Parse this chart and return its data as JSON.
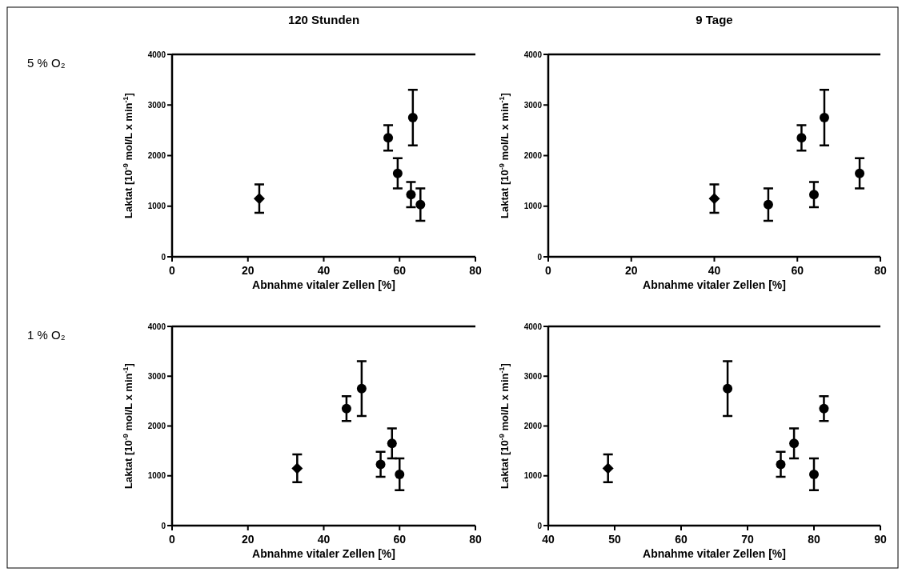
{
  "chart_data": [
    {
      "type": "scatter",
      "title": "120 Stunden",
      "xlabel": "Abnahme vitaler Zellen [%]",
      "ylabel": "Laktat [10$^{-9}$ mol/L x min$^{-1}$]",
      "annotations": [
        "5 % O₂"
      ],
      "xlim": [
        0,
        80
      ],
      "xticks": [
        0,
        20,
        40,
        60,
        80
      ],
      "ylim": [
        0,
        4000
      ],
      "yticks": [
        0,
        1000,
        2000,
        3000,
        4000
      ],
      "grid": false,
      "series": [
        {
          "color": "#000000",
          "marker": "diamond",
          "x": [
            23
          ],
          "values": [
            1150
          ],
          "errors": [
            280
          ]
        },
        {
          "color": "#000000",
          "marker": "circle",
          "x": [
            57,
            59.5,
            63,
            63.5,
            65.5
          ],
          "values": [
            2350,
            1650,
            1230,
            2750,
            1030
          ],
          "errors": [
            250,
            300,
            250,
            550,
            320
          ]
        }
      ]
    },
    {
      "type": "scatter",
      "title": "9 Tage",
      "xlabel": "Abnahme vitaler Zellen [%]",
      "ylabel": "Laktat [10$^{-9}$ mol/L x min$^{-1}$]",
      "xlim": [
        0,
        80
      ],
      "xticks": [
        0,
        20,
        40,
        60,
        80
      ],
      "ylim": [
        0,
        4000
      ],
      "yticks": [
        0,
        1000,
        2000,
        3000,
        4000
      ],
      "grid": false,
      "series": [
        {
          "color": "#000000",
          "marker": "diamond",
          "x": [
            40
          ],
          "values": [
            1150
          ],
          "errors": [
            280
          ]
        },
        {
          "color": "#000000",
          "marker": "circle",
          "x": [
            53,
            61,
            64,
            66.5,
            75
          ],
          "values": [
            1030,
            2350,
            1230,
            2750,
            1650
          ],
          "errors": [
            320,
            250,
            250,
            550,
            300
          ]
        }
      ]
    },
    {
      "type": "scatter",
      "xlabel": "Abnahme vitaler Zellen [%]",
      "ylabel": "Laktat [10$^{-9}$ mol/L x min$^{-1}$]",
      "annotations": [
        "1 % O₂"
      ],
      "xlim": [
        0,
        80
      ],
      "xticks": [
        0,
        20,
        40,
        60,
        80
      ],
      "ylim": [
        0,
        4000
      ],
      "yticks": [
        0,
        1000,
        2000,
        3000,
        4000
      ],
      "grid": false,
      "series": [
        {
          "color": "#000000",
          "marker": "diamond",
          "x": [
            33
          ],
          "values": [
            1150
          ],
          "errors": [
            280
          ]
        },
        {
          "color": "#000000",
          "marker": "circle",
          "x": [
            46,
            50,
            55,
            58,
            60
          ],
          "values": [
            2350,
            2750,
            1230,
            1650,
            1030
          ],
          "errors": [
            250,
            550,
            250,
            300,
            320
          ]
        }
      ]
    },
    {
      "type": "scatter",
      "xlabel": "Abnahme vitaler Zellen [%]",
      "ylabel": "Laktat [10$^{-9}$ mol/L x min$^{-1}$]",
      "xlim": [
        40,
        90
      ],
      "xticks": [
        40,
        50,
        60,
        70,
        80,
        90
      ],
      "ylim": [
        0,
        4000
      ],
      "yticks": [
        0,
        1000,
        2000,
        3000,
        4000
      ],
      "grid": false,
      "series": [
        {
          "color": "#000000",
          "marker": "diamond",
          "x": [
            49
          ],
          "values": [
            1150
          ],
          "errors": [
            280
          ]
        },
        {
          "color": "#000000",
          "marker": "circle",
          "x": [
            67,
            75,
            77,
            80,
            81.5
          ],
          "values": [
            2750,
            1230,
            1650,
            1030,
            2350
          ],
          "errors": [
            550,
            250,
            300,
            320,
            250
          ]
        }
      ]
    }
  ]
}
